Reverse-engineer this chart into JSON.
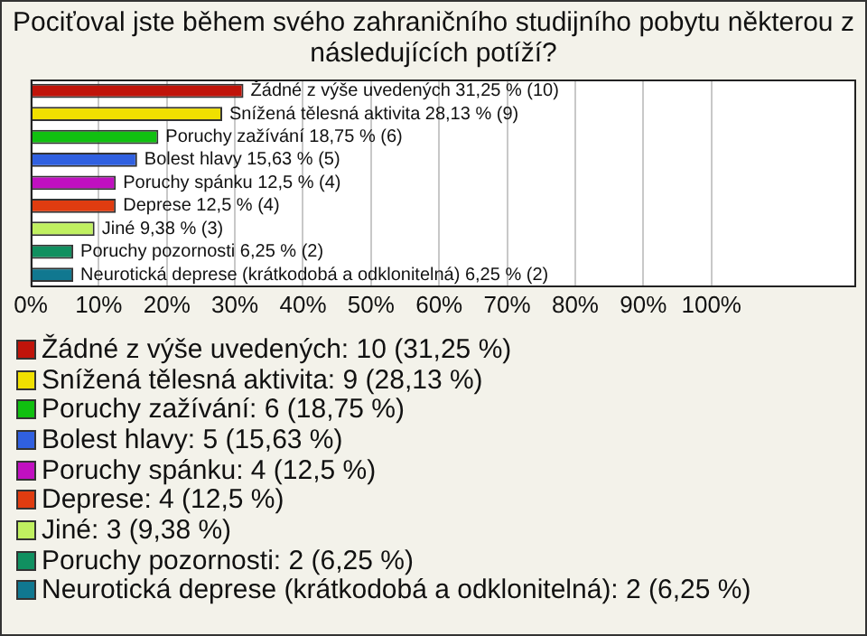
{
  "chart_data": {
    "type": "bar",
    "orientation": "horizontal",
    "stacked": true,
    "title": "Pociťoval jste během svého zahraničního studijního pobytu některou z následujících potíží?",
    "categories": [
      null,
      null,
      null,
      null,
      null,
      null,
      null,
      null,
      null
    ],
    "xlim": [
      0,
      121
    ],
    "xticks": [
      {
        "value": 0,
        "label": "0%"
      },
      {
        "value": 10,
        "label": "10%"
      },
      {
        "value": 20,
        "label": "20%"
      },
      {
        "value": 30,
        "label": "30%"
      },
      {
        "value": 40,
        "label": "40%"
      },
      {
        "value": 50,
        "label": "50%"
      },
      {
        "value": 60,
        "label": "60%"
      },
      {
        "value": 70,
        "label": "70%"
      },
      {
        "value": 80,
        "label": "80%"
      },
      {
        "value": 90,
        "label": "90%"
      },
      {
        "value": 100,
        "label": "100%"
      }
    ],
    "grid": "x",
    "legend": "bottom",
    "tick_labels": "x",
    "series": [
      {
        "name": "Žádné z výše uvedených: 10 (31,25 %)",
        "color": "#c0140a",
        "values": [
          31.25,
          null,
          null,
          null,
          null,
          null,
          null,
          null,
          null
        ],
        "value_labels": [
          "Žádné z výše uvedených 31,25 % (10)",
          null,
          null,
          null,
          null,
          null,
          null,
          null,
          null
        ]
      },
      {
        "name": "Snížená tělesná aktivita: 9 (28,13 %)",
        "color": "#f0e000",
        "values": [
          null,
          28.13,
          null,
          null,
          null,
          null,
          null,
          null,
          null
        ],
        "value_labels": [
          null,
          "Snížená tělesná aktivita 28,13 % (9)",
          null,
          null,
          null,
          null,
          null,
          null,
          null
        ]
      },
      {
        "name": "Poruchy zažívání: 6 (18,75 %)",
        "color": "#10c010",
        "values": [
          null,
          null,
          18.75,
          null,
          null,
          null,
          null,
          null,
          null
        ],
        "value_labels": [
          null,
          null,
          "Poruchy zažívání 18,75 % (6)",
          null,
          null,
          null,
          null,
          null,
          null
        ]
      },
      {
        "name": "Bolest hlavy: 5 (15,63 %)",
        "color": "#3060e0",
        "values": [
          null,
          null,
          null,
          15.63,
          null,
          null,
          null,
          null,
          null
        ],
        "value_labels": [
          null,
          null,
          null,
          "Bolest hlavy 15,63 % (5)",
          null,
          null,
          null,
          null,
          null
        ]
      },
      {
        "name": "Poruchy spánku: 4 (12,5 %)",
        "color": "#c010c0",
        "values": [
          null,
          null,
          null,
          null,
          12.5,
          null,
          null,
          null,
          null
        ],
        "value_labels": [
          null,
          null,
          null,
          null,
          "Poruchy spánku 12,5 % (4)",
          null,
          null,
          null,
          null
        ]
      },
      {
        "name": "Deprese: 4 (12,5 %)",
        "color": "#e03c10",
        "values": [
          null,
          null,
          null,
          null,
          null,
          12.5,
          null,
          null,
          null
        ],
        "value_labels": [
          null,
          null,
          null,
          null,
          null,
          "Deprese 12,5 % (4)",
          null,
          null,
          null
        ]
      },
      {
        "name": "Jiné: 3 (9,38 %)",
        "color": "#c0f060",
        "values": [
          null,
          null,
          null,
          null,
          null,
          null,
          9.38,
          null,
          null
        ],
        "value_labels": [
          null,
          null,
          null,
          null,
          null,
          null,
          "Jiné 9,38 % (3)",
          null,
          null
        ]
      },
      {
        "name": "Poruchy pozornosti: 2 (6,25 %)",
        "color": "#109060",
        "values": [
          null,
          null,
          null,
          null,
          null,
          null,
          null,
          6.25,
          null
        ],
        "value_labels": [
          null,
          null,
          null,
          null,
          null,
          null,
          null,
          "Poruchy pozornosti 6,25 % (2)",
          null
        ]
      },
      {
        "name": "Neurotická deprese (krátkodobá a odklonitelná): 2 (6,25 %)",
        "color": "#107890",
        "values": [
          null,
          null,
          null,
          null,
          null,
          null,
          null,
          null,
          6.25
        ],
        "value_labels": [
          null,
          null,
          null,
          null,
          null,
          null,
          null,
          null,
          "Neurotická deprese (krátkodobá a odklonitelná) 6,25 % (2)"
        ]
      }
    ]
  }
}
